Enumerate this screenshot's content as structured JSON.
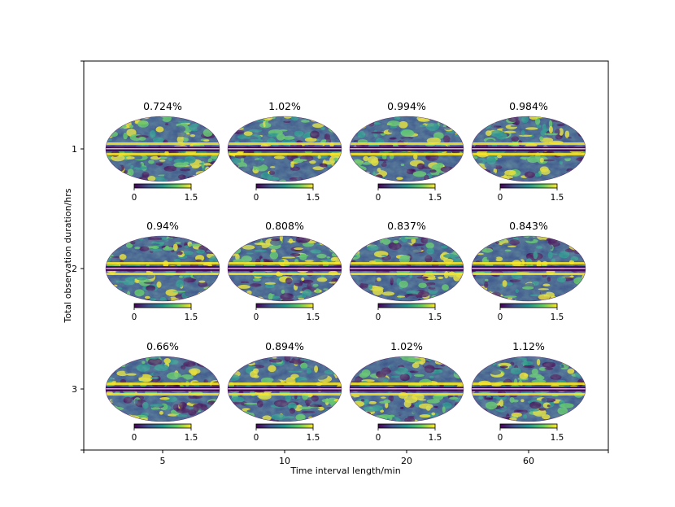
{
  "chart_data": {
    "type": "heatmap",
    "description_grid": "3x4 grid of Mollweide sky maps with colorbars",
    "xlabel": "Time interval length/min",
    "ylabel": "Total observation duration/hrs",
    "x_categories": [
      "5",
      "10",
      "20",
      "60"
    ],
    "y_categories": [
      "1",
      "2",
      "3"
    ],
    "panel_titles": [
      [
        "0.724%",
        "1.02%",
        "0.994%",
        "0.984%"
      ],
      [
        "0.94%",
        "0.808%",
        "0.837%",
        "0.843%"
      ],
      [
        "0.66%",
        "0.894%",
        "1.02%",
        "1.12%"
      ]
    ],
    "colorbar": {
      "min_label": "0",
      "max_label": "1.5",
      "vmin": 0,
      "vmax": 1.5,
      "colormap": "viridis"
    },
    "grid": false,
    "legend": "none"
  },
  "colors": {
    "viridis": [
      "#440154",
      "#3b528b",
      "#21918c",
      "#5ec962",
      "#fde725"
    ]
  }
}
